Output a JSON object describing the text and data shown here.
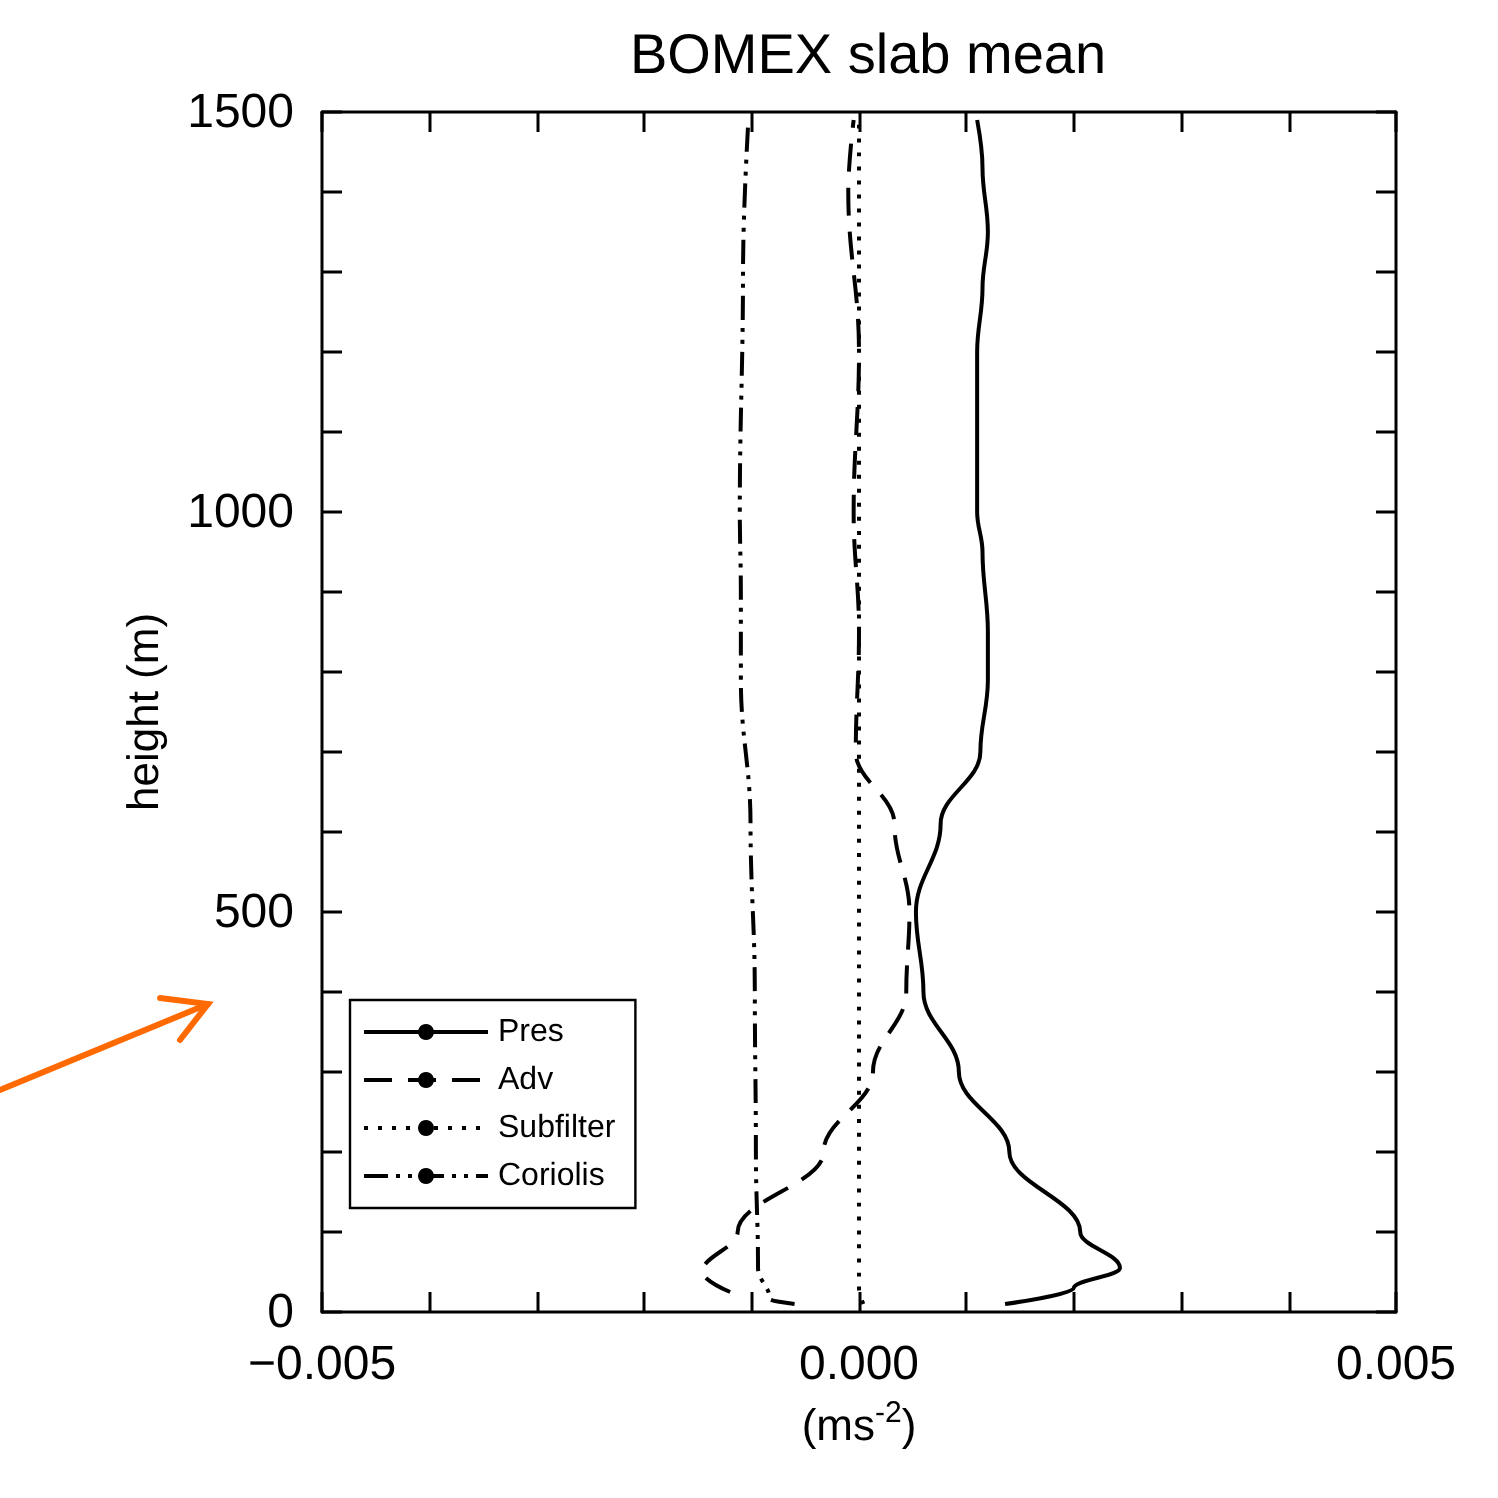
{
  "chart_data": {
    "type": "line",
    "title": "BOMEX slab mean",
    "xlabel": "(ms$^{-2}$)",
    "ylabel": "height (m)",
    "xlim": [
      -0.005,
      0.005
    ],
    "xticks": [
      {
        "value": -0.005,
        "label": "−0.005"
      },
      {
        "value": -0.004,
        "label": null
      },
      {
        "value": -0.003,
        "label": null
      },
      {
        "value": -0.002,
        "label": null
      },
      {
        "value": -0.001,
        "label": null
      },
      {
        "value": 0,
        "label": "0.000"
      },
      {
        "value": 0.001,
        "label": null
      },
      {
        "value": 0.002,
        "label": null
      },
      {
        "value": 0.003,
        "label": null
      },
      {
        "value": 0.004,
        "label": null
      },
      {
        "value": 0.005,
        "label": "0.005"
      }
    ],
    "ylim": [
      0,
      1500
    ],
    "yticks": [
      0,
      {
        "value": 100,
        "label": null
      },
      {
        "value": 200,
        "label": null
      },
      {
        "value": 300,
        "label": null
      },
      {
        "value": 400,
        "label": null
      },
      500,
      {
        "value": 600,
        "label": null
      },
      {
        "value": 700,
        "label": null
      },
      {
        "value": 800,
        "label": null
      },
      {
        "value": 900,
        "label": null
      },
      1000,
      {
        "value": 1100,
        "label": null
      },
      {
        "value": 1200,
        "label": null
      },
      {
        "value": 1300,
        "label": null
      },
      {
        "value": 1400,
        "label": null
      },
      1500
    ],
    "grid": false,
    "legend": "bottom left",
    "marker": "none",
    "series": [
      {
        "name": "Pres",
        "color": "#000000",
        "line_style": "solid",
        "x": [
          0.00136,
          0.002,
          0.00243,
          0.00206,
          0.0014,
          0.00093,
          0.0006,
          0.00053,
          0.00076,
          0.00113,
          0.0012,
          0.0012,
          0.00115,
          0.0011,
          0.0011,
          0.0011,
          0.00115,
          0.0012,
          0.00115,
          0.0011
        ],
        "values": [
          10,
          30,
          55,
          100,
          200,
          300,
          400,
          500,
          610,
          700,
          790,
          850,
          950,
          1000,
          1100,
          1200,
          1280,
          1350,
          1430,
          1490
        ]
      },
      {
        "name": "Adv",
        "color": "#000000",
        "line_style": "dashed",
        "x": [
          -0.0012,
          -0.00146,
          -0.00113,
          -0.00033,
          0.00013,
          0.00044,
          0.00047,
          0.00033,
          -3e-05,
          0,
          -5e-05,
          0,
          -0.0001,
          -5e-05
        ],
        "values": [
          25,
          50,
          100,
          200,
          300,
          400,
          500,
          610,
          700,
          850,
          1000,
          1200,
          1400,
          1490
        ]
      },
      {
        "name": "Subfilter",
        "color": "#000000",
        "line_style": "dotted",
        "x": [
          4e-05,
          0,
          0,
          0,
          0,
          0
        ],
        "values": [
          10,
          30,
          300,
          700,
          1100,
          1490
        ]
      },
      {
        "name": "Coriolis",
        "color": "#000000",
        "line_style": "dashdot",
        "x": [
          -0.0006,
          -0.00083,
          -0.00094,
          -0.00096,
          -0.00097,
          -0.00101,
          -0.0011,
          -0.0011,
          -0.00111,
          -0.00108,
          -0.00103
        ],
        "values": [
          10,
          16,
          55,
          200,
          400,
          610,
          790,
          900,
          1000,
          1300,
          1490
        ]
      }
    ]
  }
}
